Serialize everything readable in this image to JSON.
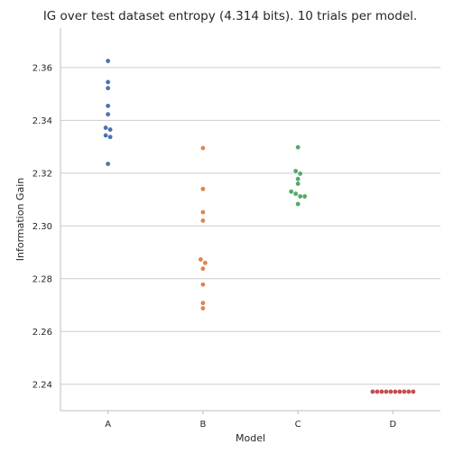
{
  "chart_data": {
    "type": "scatter",
    "title": "IG over test dataset entropy (4.314 bits). 10 trials per model.",
    "xlabel": "Model",
    "ylabel": "Information Gain",
    "categories": [
      "A",
      "B",
      "C",
      "D"
    ],
    "ylim": [
      2.23,
      2.375
    ],
    "yticks": [
      2.24,
      2.26,
      2.28,
      2.3,
      2.32,
      2.34,
      2.36
    ],
    "ytick_labels": [
      "2.24",
      "2.26",
      "2.28",
      "2.30",
      "2.32",
      "2.34",
      "2.36"
    ],
    "grid": "horizontal",
    "series": [
      {
        "category": "A",
        "color": "#4c72b0",
        "values": [
          2.3625,
          2.3545,
          2.3522,
          2.3455,
          2.3423,
          2.3372,
          2.3365,
          2.3343,
          2.3337,
          2.3235
        ]
      },
      {
        "category": "B",
        "color": "#dd8452",
        "values": [
          2.3295,
          2.314,
          2.3052,
          2.302,
          2.2873,
          2.286,
          2.2838,
          2.2778,
          2.2708,
          2.2688
        ]
      },
      {
        "category": "C",
        "color": "#55a868",
        "values": [
          2.3298,
          2.3208,
          2.3198,
          2.3178,
          2.316,
          2.313,
          2.3122,
          2.3112,
          2.3112,
          2.3083
        ]
      },
      {
        "category": "D",
        "color": "#c44e52",
        "values": [
          2.2372,
          2.2372,
          2.2372,
          2.2372,
          2.2372,
          2.2372,
          2.2372,
          2.2372,
          2.2372,
          2.2372
        ]
      }
    ]
  }
}
